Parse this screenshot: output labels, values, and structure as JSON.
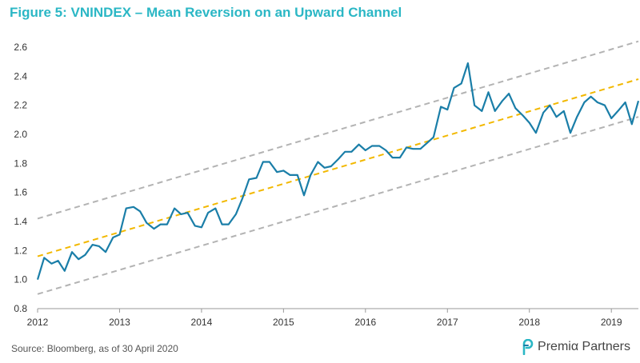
{
  "figure": {
    "title": "Figure 5: VNINDEX – Mean Reversion on an Upward Channel",
    "source": "Source: Bloomberg, as of 30 April 2020",
    "brand": "Premiα Partners"
  },
  "colors": {
    "title": "#2bb7c5",
    "index_line": "#1a7ea8",
    "mean_line": "#f2b800",
    "band_lines": "#b3b3b3",
    "axis": "#999999"
  },
  "chart_data": {
    "type": "line",
    "title": "",
    "xlabel": "",
    "ylabel": "",
    "xlim": [
      2012.0,
      2019.33
    ],
    "ylim": [
      0.8,
      2.6
    ],
    "y_ticks": [
      "0.8",
      "1.0",
      "1.2",
      "1.4",
      "1.6",
      "1.8",
      "2.0",
      "2.2",
      "2.4",
      "2.6"
    ],
    "x_ticks": [
      "2012",
      "2013",
      "2014",
      "2015",
      "2016",
      "2017",
      "2018",
      "2019"
    ],
    "grid": false,
    "legend": "none",
    "series": [
      {
        "role": "index",
        "style": "solid",
        "x": [
          2012.0,
          2012.08,
          2012.17,
          2012.25,
          2012.33,
          2012.42,
          2012.5,
          2012.58,
          2012.67,
          2012.75,
          2012.83,
          2012.92,
          2013.0,
          2013.08,
          2013.17,
          2013.25,
          2013.33,
          2013.42,
          2013.5,
          2013.58,
          2013.67,
          2013.75,
          2013.83,
          2013.92,
          2014.0,
          2014.08,
          2014.17,
          2014.25,
          2014.33,
          2014.42,
          2014.5,
          2014.58,
          2014.67,
          2014.75,
          2014.83,
          2014.92,
          2015.0,
          2015.08,
          2015.17,
          2015.25,
          2015.33,
          2015.42,
          2015.5,
          2015.58,
          2015.67,
          2015.75,
          2015.83,
          2015.92,
          2016.0,
          2016.08,
          2016.17,
          2016.25,
          2016.33,
          2016.42,
          2016.5,
          2016.58,
          2016.67,
          2016.75,
          2016.83,
          2016.92,
          2017.0,
          2017.08,
          2017.17,
          2017.25,
          2017.33,
          2017.42,
          2017.5,
          2017.58,
          2017.67,
          2017.75,
          2017.83,
          2017.92,
          2018.0,
          2018.08,
          2018.17,
          2018.25,
          2018.33,
          2018.42,
          2018.5,
          2018.58,
          2018.67,
          2018.75,
          2018.83,
          2018.92,
          2019.0,
          2019.08,
          2019.17,
          2019.25,
          2019.33
        ],
        "values": [
          1.0,
          1.15,
          1.11,
          1.13,
          1.06,
          1.19,
          1.14,
          1.17,
          1.24,
          1.23,
          1.19,
          1.29,
          1.31,
          1.49,
          1.5,
          1.47,
          1.39,
          1.35,
          1.38,
          1.38,
          1.49,
          1.45,
          1.46,
          1.37,
          1.36,
          1.46,
          1.49,
          1.38,
          1.38,
          1.45,
          1.56,
          1.69,
          1.7,
          1.81,
          1.81,
          1.74,
          1.75,
          1.72,
          1.72,
          1.58,
          1.72,
          1.81,
          1.77,
          1.78,
          1.83,
          1.88,
          1.88,
          1.93,
          1.89,
          1.92,
          1.92,
          1.89,
          1.84,
          1.84,
          1.91,
          1.9,
          1.9,
          1.94,
          1.98,
          2.19,
          2.17,
          2.32,
          2.35,
          2.49,
          2.2,
          2.16,
          2.29,
          2.16,
          2.23,
          2.28,
          2.18,
          2.13,
          2.08,
          2.01,
          2.15,
          2.2,
          2.12,
          2.16,
          2.01,
          2.12,
          2.22,
          2.26,
          2.22,
          2.2,
          2.11,
          2.16,
          2.22,
          2.07,
          2.23
        ]
      },
      {
        "role": "mean",
        "style": "dashed",
        "x": [
          2012.0,
          2019.33
        ],
        "values": [
          1.16,
          2.38
        ]
      },
      {
        "role": "upper-band",
        "style": "dashed",
        "x": [
          2012.0,
          2019.33
        ],
        "values": [
          1.42,
          2.64
        ]
      },
      {
        "role": "lower-band",
        "style": "dashed",
        "x": [
          2012.0,
          2019.33
        ],
        "values": [
          0.9,
          2.12
        ]
      }
    ]
  }
}
